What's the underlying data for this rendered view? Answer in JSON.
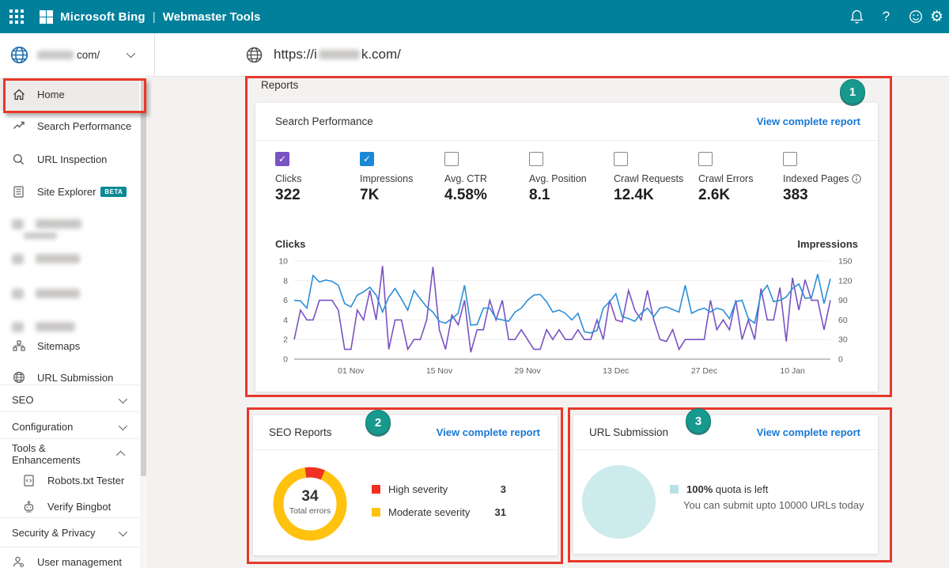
{
  "topbar": {
    "brand": "Microsoft Bing",
    "separator": "|",
    "product": "Webmaster Tools",
    "background_color": "#00809b",
    "icons": {
      "help_glyph": "?",
      "settings_glyph": "⚙"
    }
  },
  "site_selector": {
    "domain_suffix": "com/",
    "name_blurred": true
  },
  "url_bar": {
    "prefix": "https://i",
    "suffix": "k.com/",
    "middle_blurred": true
  },
  "sidebar": {
    "items": [
      {
        "label": "Home",
        "icon": "home",
        "active": true
      },
      {
        "label": "Search Performance",
        "icon": "trend"
      },
      {
        "label": "URL Inspection",
        "icon": "magnifier"
      },
      {
        "label": "Site Explorer",
        "icon": "document",
        "badge": "BETA"
      },
      {
        "label": "",
        "blurred": true
      },
      {
        "label": "",
        "blurred": true
      },
      {
        "label": "",
        "blurred": true
      },
      {
        "label": "",
        "blurred": true
      },
      {
        "label": "Sitemaps",
        "icon": "sitemap"
      },
      {
        "label": "URL Submission",
        "icon": "globe"
      },
      {
        "label": "SEO",
        "chevron": "down"
      },
      {
        "label": "Configuration",
        "chevron": "down"
      },
      {
        "label": "Tools & Enhancements",
        "chevron": "up"
      },
      {
        "label": "Robots.txt Tester",
        "icon": "robots-file"
      },
      {
        "label": "Verify Bingbot",
        "icon": "bot"
      },
      {
        "label": "Security & Privacy",
        "chevron": "down"
      },
      {
        "label": "User management",
        "icon": "user-gear"
      }
    ]
  },
  "reports": {
    "title": "Reports"
  },
  "search_performance": {
    "title": "Search Performance",
    "link": "View complete report",
    "metrics": [
      {
        "label": "Clicks",
        "value": "322",
        "checked": true,
        "color": "#7a52c2"
      },
      {
        "label": "Impressions",
        "value": "7K",
        "checked": true,
        "color": "#1b87d7"
      },
      {
        "label": "Avg. CTR",
        "value": "4.58%",
        "checked": false
      },
      {
        "label": "Avg. Position",
        "value": "8.1",
        "checked": false
      },
      {
        "label": "Crawl Requests",
        "value": "12.4K",
        "checked": false
      },
      {
        "label": "Crawl Errors",
        "value": "2.6K",
        "checked": false
      },
      {
        "label": "Indexed Pages",
        "value": "383",
        "checked": false,
        "info": true
      }
    ]
  },
  "seo_reports": {
    "title": "SEO Reports",
    "link": "View complete report"
  },
  "url_submission": {
    "title": "URL Submission",
    "link": "View complete report",
    "quota_bold": "100%",
    "quota_rest": " quota is left",
    "note": "You can submit upto 10000 URLs today"
  },
  "annotations": {
    "marker1": "1",
    "marker2": "2",
    "marker3": "3"
  },
  "chart_data": [
    {
      "type": "line",
      "title": "Search Performance",
      "grid": true,
      "left_axis": {
        "label": "Clicks",
        "range": [
          0,
          10
        ],
        "ticks": [
          0,
          2,
          4,
          6,
          8,
          10
        ]
      },
      "right_axis": {
        "label": "Impressions",
        "range": [
          0,
          150
        ],
        "ticks": [
          0,
          30,
          60,
          90,
          120,
          150
        ]
      },
      "x_tick_labels": [
        "01 Nov",
        "15 Nov",
        "29 Nov",
        "13 Dec",
        "27 Dec",
        "10 Jan"
      ],
      "x_tick_days": [
        9,
        23,
        37,
        51,
        65,
        79
      ],
      "series": [
        {
          "name": "Clicks",
          "axis": "left",
          "color": "#7a52c2",
          "values": [
            2,
            5,
            4,
            4,
            6,
            6,
            6,
            5,
            1,
            1,
            5,
            4,
            7,
            4,
            9.5,
            1,
            4,
            4,
            1,
            2,
            2,
            4,
            9.4,
            3,
            1,
            4.5,
            3.5,
            6,
            0.7,
            3,
            3,
            6,
            4,
            6,
            2,
            2,
            3,
            2,
            1,
            1,
            3,
            2,
            3,
            2,
            2,
            3,
            2,
            2,
            4,
            2,
            6,
            4,
            3.8,
            7,
            5,
            4,
            7,
            4,
            2,
            1.8,
            3,
            1,
            2,
            2,
            2,
            2,
            6,
            3,
            4,
            3,
            6,
            2,
            4,
            2,
            7.2,
            4,
            4,
            7.3,
            1.8,
            8.3,
            5,
            8.1,
            6,
            6,
            3,
            6
          ]
        },
        {
          "name": "Impressions",
          "axis": "right",
          "color": "#2b8ed8",
          "values": [
            90,
            89,
            78,
            128,
            118,
            121,
            119,
            113,
            85,
            80,
            98,
            103,
            110,
            98,
            72,
            95,
            108,
            92,
            75,
            105,
            92,
            80,
            72,
            58,
            55,
            62,
            70,
            113,
            52,
            53,
            78,
            78,
            62,
            60,
            58,
            72,
            78,
            90,
            98,
            99,
            88,
            72,
            75,
            70,
            60,
            70,
            42,
            40,
            44,
            78,
            88,
            100,
            65,
            62,
            58,
            70,
            78,
            65,
            78,
            80,
            76,
            72,
            113,
            70,
            75,
            78,
            72,
            78,
            75,
            62,
            88,
            90,
            62,
            55,
            100,
            113,
            88,
            90,
            95,
            108,
            115,
            93,
            94,
            130,
            85,
            123
          ]
        }
      ]
    },
    {
      "type": "pie",
      "subtype": "donut",
      "title": "SEO Reports",
      "center_value": "34",
      "center_label": "Total errors",
      "slices": [
        {
          "label": "High severity",
          "value": 3,
          "color": "#ee3124"
        },
        {
          "label": "Moderate severity",
          "value": 31,
          "color": "#ffc20e"
        }
      ]
    },
    {
      "type": "pie",
      "title": "URL Submission",
      "slices": [
        {
          "label": "100% quota is left",
          "value": 100,
          "color": "#cdeaec"
        }
      ],
      "legend_square_color": "#b9e2e5"
    }
  ]
}
